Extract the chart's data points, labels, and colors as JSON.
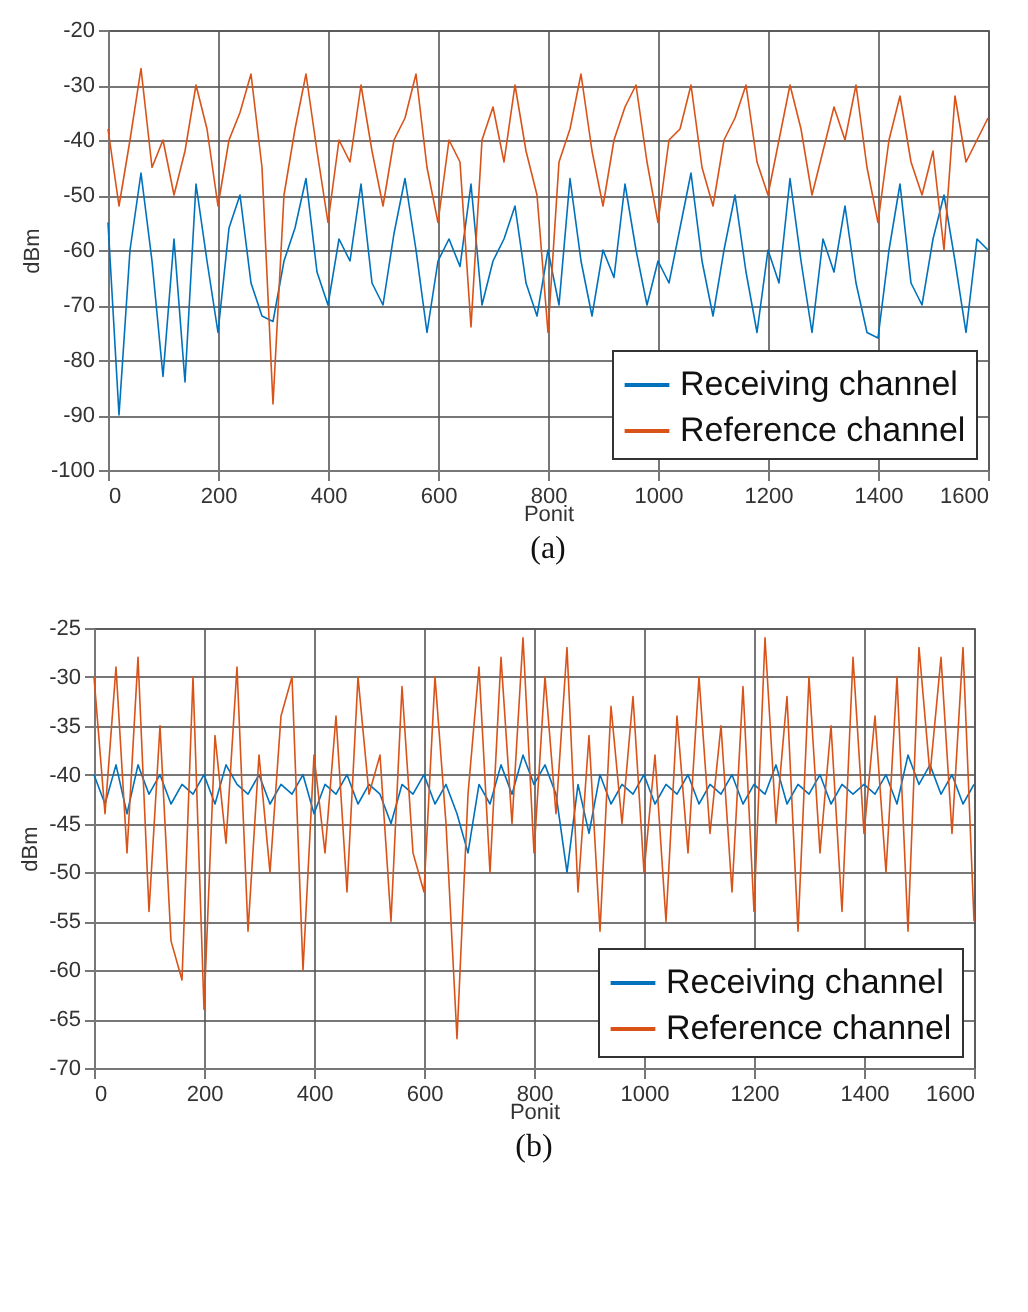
{
  "chart_data": [
    {
      "type": "line",
      "title": "(a)",
      "xlabel": "Ponit",
      "ylabel": "dBm",
      "xlim": [
        0,
        1600
      ],
      "xticks": [
        0,
        200,
        400,
        600,
        800,
        1000,
        1200,
        1400,
        1600
      ],
      "ylim": [
        -100,
        -20
      ],
      "yticks": [
        -100,
        -90,
        -80,
        -70,
        -60,
        -50,
        -40,
        -30,
        -20
      ],
      "grid": true,
      "legend": "bottom right",
      "x": [
        0,
        20,
        40,
        60,
        80,
        100,
        120,
        140,
        160,
        180,
        200,
        220,
        240,
        260,
        280,
        300,
        320,
        340,
        360,
        380,
        400,
        420,
        440,
        460,
        480,
        500,
        520,
        540,
        560,
        580,
        600,
        620,
        640,
        660,
        680,
        700,
        720,
        740,
        760,
        780,
        800,
        820,
        840,
        860,
        880,
        900,
        920,
        940,
        960,
        980,
        1000,
        1020,
        1040,
        1060,
        1080,
        1100,
        1120,
        1140,
        1160,
        1180,
        1200,
        1220,
        1240,
        1260,
        1280,
        1300,
        1320,
        1340,
        1360,
        1380,
        1400,
        1420,
        1440,
        1460,
        1480,
        1500,
        1520,
        1540,
        1560,
        1580,
        1600
      ],
      "series": [
        {
          "name": "Receiving channel",
          "color": "#0072bd",
          "values": [
            -55,
            -90,
            -60,
            -46,
            -62,
            -83,
            -58,
            -84,
            -48,
            -62,
            -75,
            -56,
            -50,
            -66,
            -72,
            -73,
            -62,
            -56,
            -47,
            -64,
            -70,
            -58,
            -62,
            -48,
            -66,
            -70,
            -57,
            -47,
            -60,
            -75,
            -62,
            -58,
            -63,
            -48,
            -70,
            -62,
            -58,
            -52,
            -66,
            -72,
            -60,
            -70,
            -47,
            -62,
            -72,
            -60,
            -65,
            -48,
            -60,
            -70,
            -62,
            -66,
            -56,
            -46,
            -62,
            -72,
            -60,
            -50,
            -64,
            -75,
            -60,
            -66,
            -47,
            -62,
            -75,
            -58,
            -64,
            -52,
            -66,
            -75,
            -76,
            -60,
            -48,
            -66,
            -70,
            -58,
            -50,
            -62,
            -75,
            -58,
            -60
          ]
        },
        {
          "name": "Reference channel",
          "color": "#d95319",
          "values": [
            -38,
            -52,
            -40,
            -27,
            -45,
            -40,
            -50,
            -42,
            -30,
            -38,
            -52,
            -40,
            -35,
            -28,
            -45,
            -88,
            -50,
            -38,
            -28,
            -42,
            -55,
            -40,
            -44,
            -30,
            -42,
            -52,
            -40,
            -36,
            -28,
            -45,
            -55,
            -40,
            -44,
            -74,
            -40,
            -34,
            -44,
            -30,
            -42,
            -50,
            -75,
            -44,
            -38,
            -28,
            -42,
            -52,
            -40,
            -34,
            -30,
            -44,
            -55,
            -40,
            -38,
            -30,
            -45,
            -52,
            -40,
            -36,
            -30,
            -44,
            -50,
            -40,
            -30,
            -38,
            -50,
            -42,
            -34,
            -40,
            -30,
            -45,
            -55,
            -40,
            -32,
            -44,
            -50,
            -42,
            -60,
            -32,
            -44,
            -40,
            -36
          ]
        }
      ]
    },
    {
      "type": "line",
      "title": "(b)",
      "xlabel": "Ponit",
      "ylabel": "dBm",
      "xlim": [
        0,
        1600
      ],
      "xticks": [
        0,
        200,
        400,
        600,
        800,
        1000,
        1200,
        1400,
        1600
      ],
      "ylim": [
        -70,
        -25
      ],
      "yticks": [
        -70,
        -65,
        -60,
        -55,
        -50,
        -45,
        -40,
        -35,
        -30,
        -25
      ],
      "grid": true,
      "legend": "bottom right",
      "x": [
        0,
        20,
        40,
        60,
        80,
        100,
        120,
        140,
        160,
        180,
        200,
        220,
        240,
        260,
        280,
        300,
        320,
        340,
        360,
        380,
        400,
        420,
        440,
        460,
        480,
        500,
        520,
        540,
        560,
        580,
        600,
        620,
        640,
        660,
        680,
        700,
        720,
        740,
        760,
        780,
        800,
        820,
        840,
        860,
        880,
        900,
        920,
        940,
        960,
        980,
        1000,
        1020,
        1040,
        1060,
        1080,
        1100,
        1120,
        1140,
        1160,
        1180,
        1200,
        1220,
        1240,
        1260,
        1280,
        1300,
        1320,
        1340,
        1360,
        1380,
        1400,
        1420,
        1440,
        1460,
        1480,
        1500,
        1520,
        1540,
        1560,
        1580,
        1600
      ],
      "series": [
        {
          "name": "Receiving channel",
          "color": "#0072bd",
          "values": [
            -40,
            -43,
            -39,
            -44,
            -39,
            -42,
            -40,
            -43,
            -41,
            -42,
            -40,
            -43,
            -39,
            -41,
            -42,
            -40,
            -43,
            -41,
            -42,
            -40,
            -44,
            -41,
            -42,
            -40,
            -43,
            -41,
            -42,
            -45,
            -41,
            -42,
            -40,
            -43,
            -41,
            -44,
            -48,
            -41,
            -43,
            -39,
            -42,
            -38,
            -41,
            -39,
            -42,
            -50,
            -41,
            -46,
            -40,
            -43,
            -41,
            -42,
            -40,
            -43,
            -41,
            -42,
            -40,
            -43,
            -41,
            -42,
            -40,
            -43,
            -41,
            -42,
            -39,
            -43,
            -41,
            -42,
            -40,
            -43,
            -41,
            -42,
            -41,
            -42,
            -40,
            -43,
            -38,
            -41,
            -39,
            -42,
            -40,
            -43,
            -41
          ]
        },
        {
          "name": "Reference channel",
          "color": "#d95319",
          "values": [
            -30,
            -44,
            -29,
            -48,
            -28,
            -54,
            -35,
            -57,
            -61,
            -30,
            -64,
            -36,
            -47,
            -29,
            -56,
            -38,
            -50,
            -34,
            -30,
            -60,
            -38,
            -48,
            -34,
            -52,
            -30,
            -42,
            -38,
            -55,
            -31,
            -48,
            -52,
            -30,
            -45,
            -67,
            -42,
            -29,
            -50,
            -28,
            -45,
            -26,
            -48,
            -30,
            -44,
            -27,
            -52,
            -36,
            -56,
            -33,
            -45,
            -32,
            -50,
            -38,
            -55,
            -34,
            -48,
            -30,
            -46,
            -35,
            -52,
            -31,
            -54,
            -26,
            -45,
            -32,
            -56,
            -30,
            -48,
            -35,
            -54,
            -28,
            -46,
            -34,
            -50,
            -30,
            -56,
            -27,
            -40,
            -28,
            -46,
            -27,
            -55
          ]
        }
      ]
    }
  ]
}
